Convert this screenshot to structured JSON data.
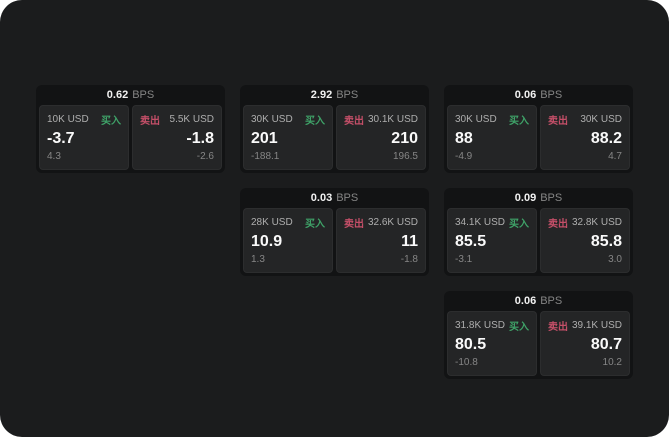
{
  "labels": {
    "bps": "BPS",
    "buy": "买入",
    "sell": "卖出"
  },
  "colors": {
    "buy_green": "#3fa268",
    "sell_red": "#c44f68",
    "page_bg": "#1b1c1d",
    "card_bg": "#121314",
    "panel_bg": "#242526"
  },
  "cards": [
    {
      "bps": "0.62",
      "buy": {
        "amount": "10K USD",
        "price": "-3.7",
        "delta": "4.3"
      },
      "sell": {
        "amount": "5.5K USD",
        "price": "-1.8",
        "delta": "-2.6"
      }
    },
    {
      "bps": "2.92",
      "buy": {
        "amount": "30K USD",
        "price": "201",
        "delta": "-188.1"
      },
      "sell": {
        "amount": "30.1K USD",
        "price": "210",
        "delta": "196.5"
      }
    },
    {
      "bps": "0.06",
      "buy": {
        "amount": "30K USD",
        "price": "88",
        "delta": "-4.9"
      },
      "sell": {
        "amount": "30K USD",
        "price": "88.2",
        "delta": "4.7"
      }
    },
    {
      "bps": "0.03",
      "buy": {
        "amount": "28K USD",
        "price": "10.9",
        "delta": "1.3"
      },
      "sell": {
        "amount": "32.6K USD",
        "price": "11",
        "delta": "-1.8"
      }
    },
    {
      "bps": "0.09",
      "buy": {
        "amount": "34.1K USD",
        "price": "85.5",
        "delta": "-3.1"
      },
      "sell": {
        "amount": "32.8K USD",
        "price": "85.8",
        "delta": "3.0"
      }
    },
    {
      "bps": "0.06",
      "buy": {
        "amount": "31.8K USD",
        "price": "80.5",
        "delta": "-10.8"
      },
      "sell": {
        "amount": "39.1K USD",
        "price": "80.7",
        "delta": "10.2"
      }
    }
  ]
}
